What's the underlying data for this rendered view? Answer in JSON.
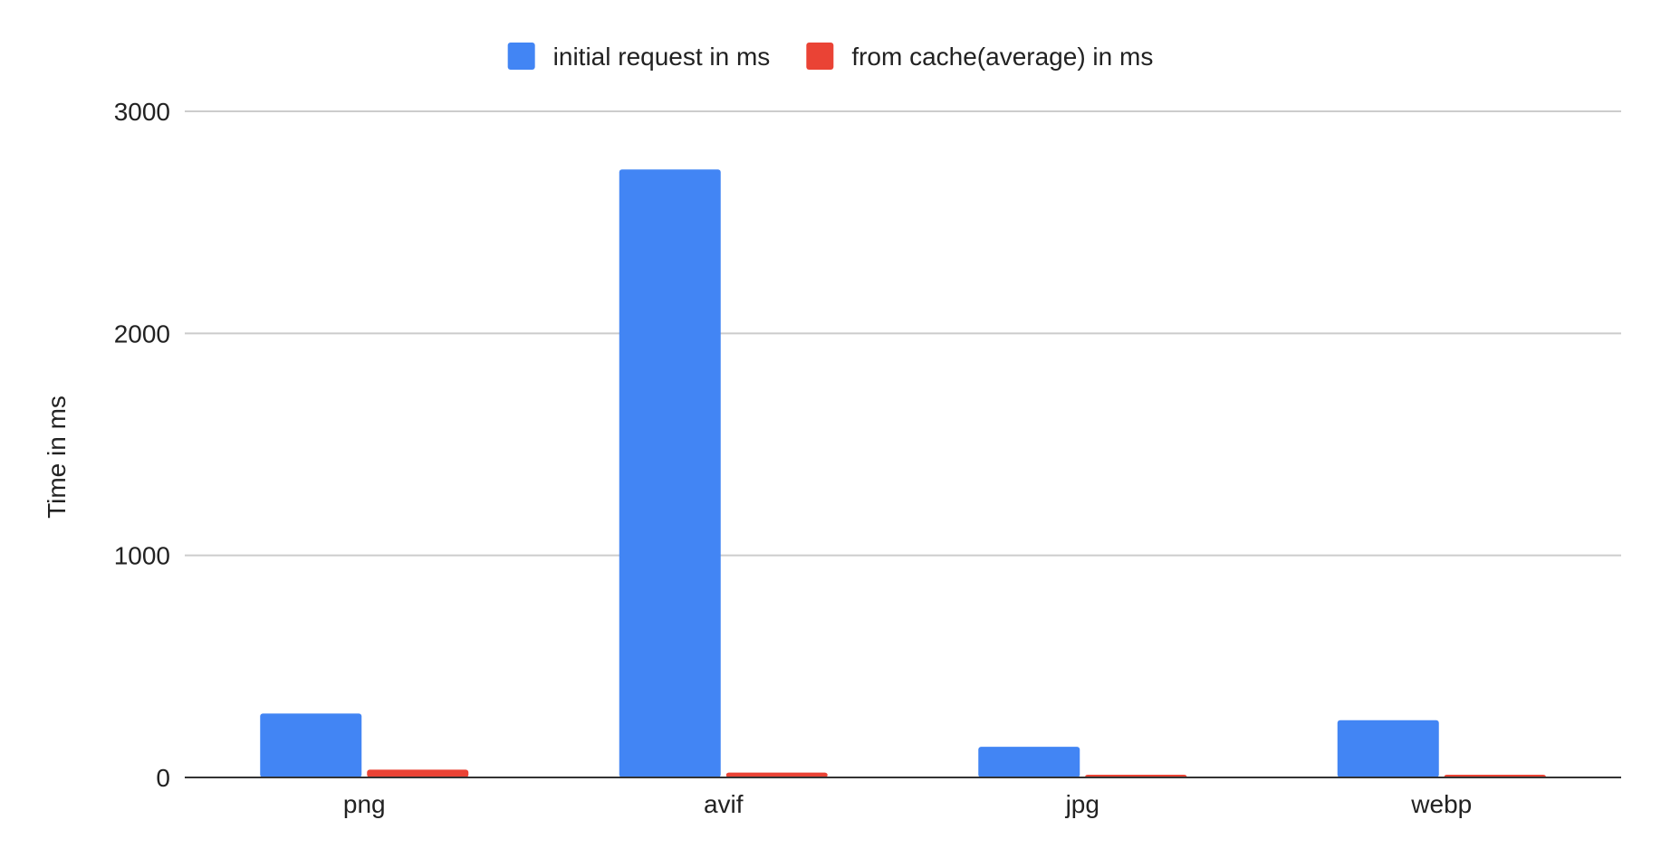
{
  "chart_data": {
    "type": "bar",
    "title": "",
    "xlabel": "",
    "ylabel": "Time in ms",
    "categories": [
      "png",
      "avif",
      "jpg",
      "webp"
    ],
    "series": [
      {
        "name": "initial request in ms",
        "color": "#4285f4",
        "values": [
          288,
          2738,
          138,
          258
        ]
      },
      {
        "name": "from cache(average) in ms",
        "color": "#ea4335",
        "values": [
          35,
          22,
          12,
          12
        ]
      }
    ],
    "ylim": [
      0,
      3000
    ],
    "yticks": [
      0,
      1000,
      2000,
      3000
    ],
    "grid": true,
    "legend_position": "top-center"
  }
}
